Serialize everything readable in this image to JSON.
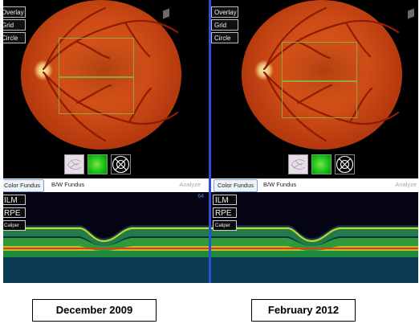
{
  "panels": [
    {
      "overlay_buttons": [
        "Overlay",
        "Grid",
        "Circle"
      ],
      "tabs": {
        "color_fundus": "Color Fundus",
        "bw_fundus": "B/W Fundus",
        "analyze": "Analyze"
      },
      "oct_buttons": [
        "ILM",
        "RPE",
        "Caliper"
      ],
      "oct_corner_text": "64",
      "caption": "December 2009"
    },
    {
      "overlay_buttons": [
        "Overlay",
        "Grid",
        "Circle"
      ],
      "tabs": {
        "color_fundus": "Color Fundus",
        "bw_fundus": "B/W Fundus",
        "analyze": "Analyze"
      },
      "oct_buttons": [
        "ILM",
        "RPE",
        "Caliper"
      ],
      "oct_corner_text": "",
      "caption": "February 2012"
    }
  ],
  "colors": {
    "divider": "#2a4fd8",
    "grid_overlay": "#8fa93c",
    "fundus": "#cf4c16",
    "thumbnail_green": "#19c419"
  },
  "icons": [
    "fundus-thumbnail-icon",
    "green-thumbnail-icon",
    "target-circle-icon"
  ]
}
